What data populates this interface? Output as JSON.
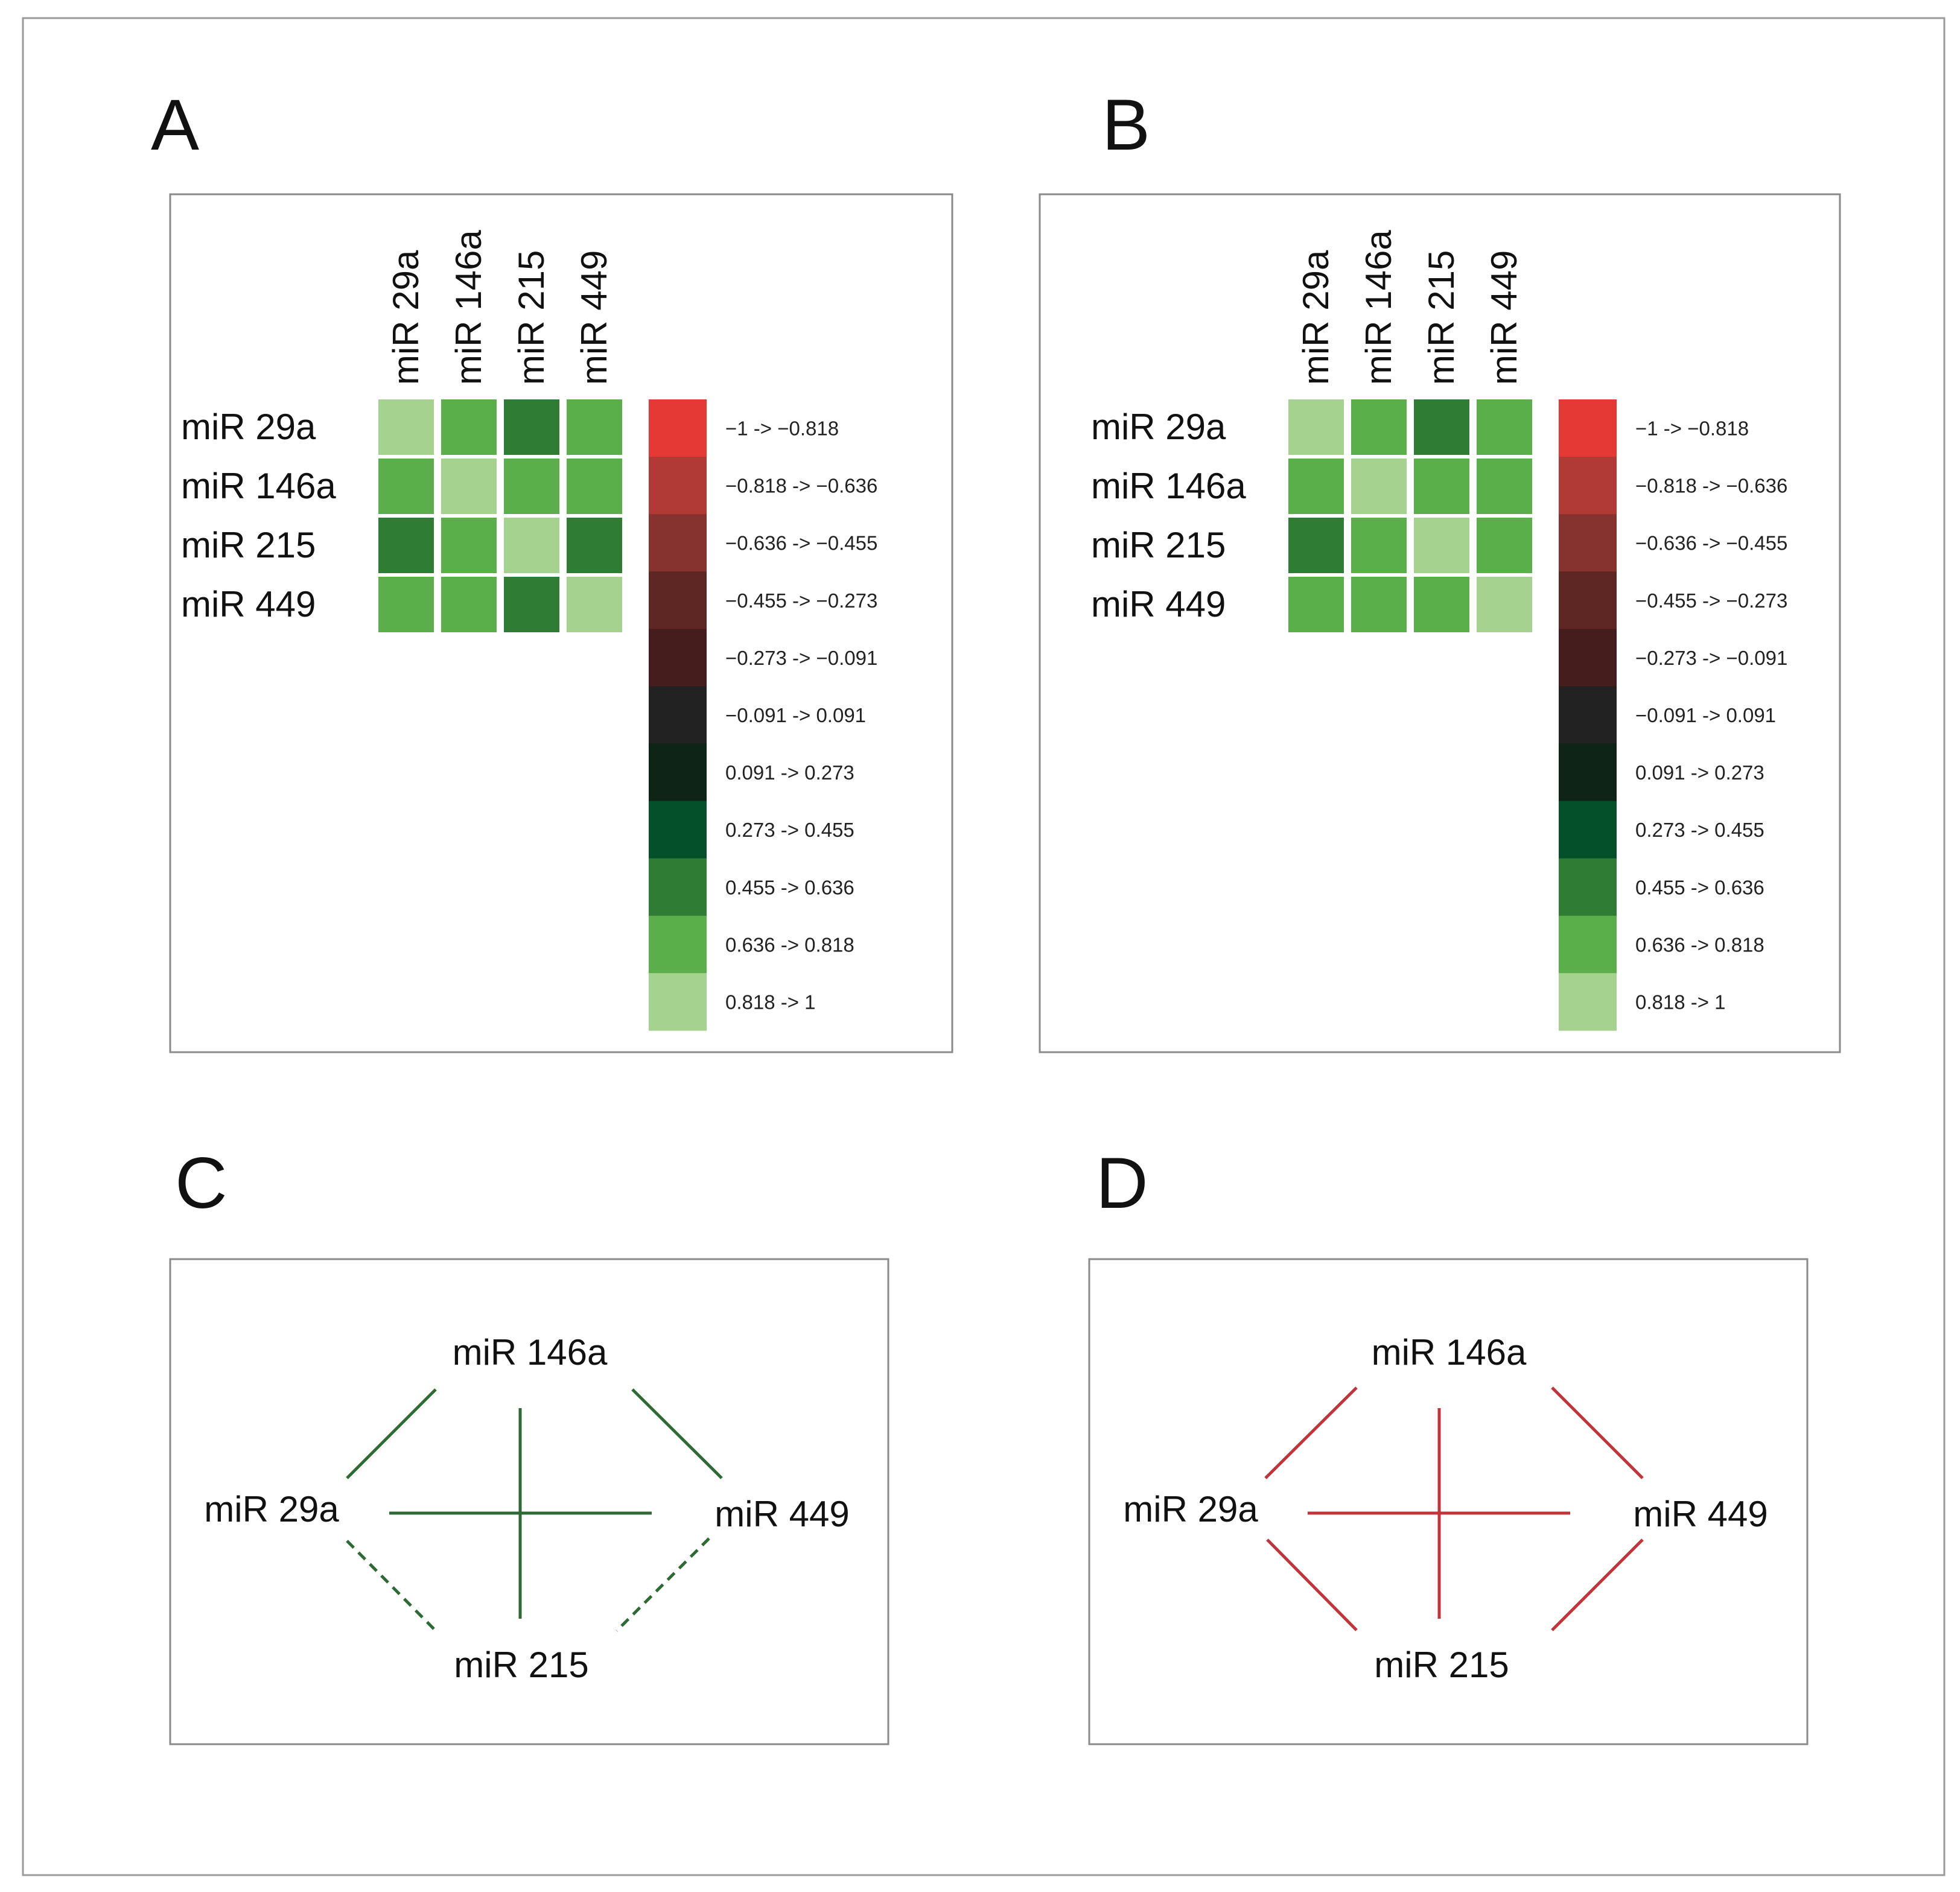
{
  "panel_letters": [
    "A",
    "B",
    "C",
    "D"
  ],
  "colors": {
    "edge_positive": "#2e6b34",
    "edge_negative": "#c0343a",
    "frame": "#8a8a8a"
  },
  "chart_data": [
    {
      "panel": "A",
      "type": "heatmap",
      "row_labels": [
        "miR 29a",
        "miR 146a",
        "miR 215",
        "miR 449"
      ],
      "col_labels": [
        "miR 29a",
        "miR 146a",
        "miR 215",
        "miR 449"
      ],
      "values": [
        [
          1.0,
          0.72,
          0.55,
          0.72
        ],
        [
          0.72,
          1.0,
          0.72,
          0.72
        ],
        [
          0.55,
          0.72,
          1.0,
          0.55
        ],
        [
          0.72,
          0.72,
          0.55,
          1.0
        ]
      ],
      "scale": {
        "labels": [
          "−1 -> −0.818",
          "−0.818 -> −0.636",
          "−0.636 -> −0.455",
          "−0.455 -> −0.273",
          "−0.273 -> −0.091",
          "−0.091 -> 0.091",
          "0.091 -> 0.273",
          "0.273 -> 0.455",
          "0.455 -> 0.636",
          "0.636 -> 0.818",
          "0.818 -> 1"
        ],
        "colors": [
          "#e53935",
          "#b13a36",
          "#86322e",
          "#5e2724",
          "#461d1d",
          "#222222",
          "#0d2416",
          "#03502a",
          "#2f7d35",
          "#5aaf4a",
          "#a6d290"
        ]
      }
    },
    {
      "panel": "B",
      "type": "heatmap",
      "row_labels": [
        "miR 29a",
        "miR 146a",
        "miR 215",
        "miR 449"
      ],
      "col_labels": [
        "miR 29a",
        "miR 146a",
        "miR 215",
        "miR 449"
      ],
      "values": [
        [
          1.0,
          0.72,
          0.55,
          0.72
        ],
        [
          0.72,
          1.0,
          0.72,
          0.72
        ],
        [
          0.55,
          0.72,
          1.0,
          0.72
        ],
        [
          0.72,
          0.72,
          0.72,
          1.0
        ]
      ],
      "scale": {
        "labels": [
          "−1 -> −0.818",
          "−0.818 -> −0.636",
          "−0.636 -> −0.455",
          "−0.455 -> −0.273",
          "−0.273 -> −0.091",
          "−0.091 -> 0.091",
          "0.091 -> 0.273",
          "0.273 -> 0.455",
          "0.455 -> 0.636",
          "0.636 -> 0.818",
          "0.818 -> 1"
        ],
        "colors": [
          "#e53935",
          "#b13a36",
          "#86322e",
          "#5e2724",
          "#461d1d",
          "#222222",
          "#0d2416",
          "#03502a",
          "#2f7d35",
          "#5aaf4a",
          "#a6d290"
        ]
      }
    },
    {
      "panel": "C",
      "type": "network",
      "nodes": [
        "miR 146a",
        "miR 29a",
        "miR 449",
        "miR 215"
      ],
      "edges": [
        {
          "from": "miR 29a",
          "to": "miR 146a",
          "style": "solid"
        },
        {
          "from": "miR 146a",
          "to": "miR 449",
          "style": "solid"
        },
        {
          "from": "miR 29a",
          "to": "miR 449",
          "style": "solid"
        },
        {
          "from": "miR 146a",
          "to": "miR 215",
          "style": "solid"
        },
        {
          "from": "miR 29a",
          "to": "miR 215",
          "style": "dashed"
        },
        {
          "from": "miR 449",
          "to": "miR 215",
          "style": "dashed"
        }
      ],
      "color": "#2e6b34"
    },
    {
      "panel": "D",
      "type": "network",
      "nodes": [
        "miR 146a",
        "miR 29a",
        "miR 449",
        "miR 215"
      ],
      "edges": [
        {
          "from": "miR 29a",
          "to": "miR 146a",
          "style": "solid"
        },
        {
          "from": "miR 146a",
          "to": "miR 449",
          "style": "solid"
        },
        {
          "from": "miR 29a",
          "to": "miR 449",
          "style": "solid"
        },
        {
          "from": "miR 146a",
          "to": "miR 215",
          "style": "solid"
        },
        {
          "from": "miR 29a",
          "to": "miR 215",
          "style": "solid"
        },
        {
          "from": "miR 449",
          "to": "miR 215",
          "style": "solid"
        }
      ],
      "color": "#c0343a"
    }
  ]
}
